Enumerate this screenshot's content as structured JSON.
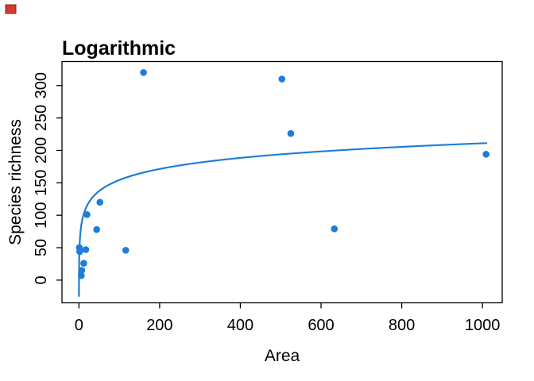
{
  "red_marker": {
    "color": "#d03a30",
    "border_color": "#911f17"
  },
  "chart_data": {
    "type": "scatter",
    "title": "Logarithmic",
    "xlabel": "Area",
    "ylabel": "Species richness",
    "x_ticks": [
      0,
      200,
      400,
      600,
      800,
      1000
    ],
    "y_ticks": [
      0,
      50,
      100,
      150,
      200,
      250,
      300
    ],
    "xlim": [
      -42,
      1049
    ],
    "ylim": [
      -35,
      337
    ],
    "grid": false,
    "legend": null,
    "point_color": "#1e7dd7",
    "curve_color": "#1e7dd7",
    "points": [
      {
        "x": 1,
        "y": 50
      },
      {
        "x": 2,
        "y": 44
      },
      {
        "x": 6,
        "y": 7
      },
      {
        "x": 7,
        "y": 15
      },
      {
        "x": 12,
        "y": 26
      },
      {
        "x": 17,
        "y": 47
      },
      {
        "x": 20,
        "y": 101
      },
      {
        "x": 44,
        "y": 78
      },
      {
        "x": 52,
        "y": 120
      },
      {
        "x": 116,
        "y": 46
      },
      {
        "x": 160,
        "y": 320
      },
      {
        "x": 503,
        "y": 310
      },
      {
        "x": 525,
        "y": 226
      },
      {
        "x": 633,
        "y": 79
      },
      {
        "x": 1009,
        "y": 194
      }
    ],
    "fit_curve": {
      "model": "logarithmic",
      "equation": "y = 41 + 24.6*ln(x)",
      "a": 41,
      "b": 24.6,
      "x_start": 0.07,
      "x_end": 1010
    }
  }
}
